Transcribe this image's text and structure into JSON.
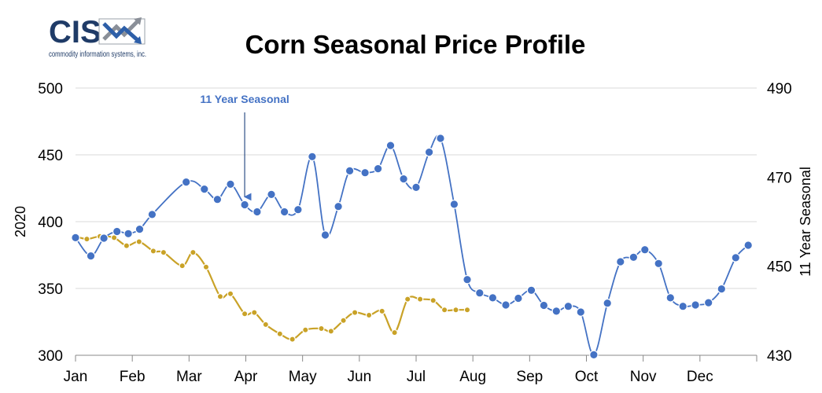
{
  "logo": {
    "brand": "CIS",
    "tagline": "commodity information systems, inc.",
    "colors": {
      "text": "#1f3b67",
      "arrow_gray": "#8a8f98",
      "arrow_blue": "#2e5fa8"
    }
  },
  "chart_data": {
    "type": "line",
    "title": "Corn Seasonal Price Profile",
    "ylabel_left": "2020",
    "ylabel_right": "11 Year Seasonal",
    "ylim_left": [
      300,
      500
    ],
    "yticks_left": [
      300,
      350,
      400,
      450,
      500
    ],
    "ylim_right": [
      430,
      490
    ],
    "yticks_right": [
      430,
      450,
      470,
      490
    ],
    "months": [
      "Jan",
      "Feb",
      "Mar",
      "Apr",
      "May",
      "Jun",
      "Jul",
      "Aug",
      "Sep",
      "Oct",
      "Nov",
      "Dec"
    ],
    "grid": true,
    "annotation": {
      "text": "11 Year Seasonal",
      "arrow_to_point": 11
    },
    "series": [
      {
        "name": "11 Year Seasonal",
        "axis": "right",
        "color": "#4472c4",
        "x": [
          0.0,
          0.27,
          0.5,
          0.73,
          0.93,
          1.13,
          1.35,
          1.95,
          2.27,
          2.5,
          2.73,
          2.98,
          3.2,
          3.45,
          3.68,
          3.92,
          4.17,
          4.4,
          4.63,
          4.83,
          5.1,
          5.33,
          5.55,
          5.78,
          6.0,
          6.23,
          6.43,
          6.67,
          6.9,
          7.12,
          7.35,
          7.58,
          7.8,
          8.03,
          8.25,
          8.47,
          8.68,
          8.9,
          9.13,
          9.37,
          9.6,
          9.83,
          10.03,
          10.27,
          10.48,
          10.7,
          10.92,
          11.15,
          11.38,
          11.63,
          11.85
        ],
        "values": [
          456.4,
          452.3,
          456.3,
          457.8,
          457.3,
          458.3,
          461.6,
          468.9,
          467.3,
          465.0,
          468.4,
          463.8,
          462.2,
          466.1,
          462.2,
          462.7,
          474.6,
          457.0,
          463.4,
          471.4,
          471.0,
          471.9,
          477.1,
          469.6,
          467.7,
          475.6,
          478.7,
          463.9,
          447.0,
          444.0,
          442.9,
          441.3,
          442.8,
          444.6,
          441.2,
          439.9,
          441.0,
          439.7,
          430.1,
          441.7,
          451.0,
          452.0,
          453.7,
          450.6,
          442.9,
          441.0,
          441.3,
          441.8,
          444.9,
          451.9,
          454.7
        ]
      },
      {
        "name": "2020",
        "axis": "left",
        "color": "#c9a227",
        "x": [
          0.0,
          0.2,
          0.43,
          0.68,
          0.9,
          1.12,
          1.37,
          1.55,
          1.88,
          2.07,
          2.3,
          2.55,
          2.73,
          2.98,
          3.15,
          3.35,
          3.6,
          3.82,
          4.05,
          4.33,
          4.5,
          4.72,
          4.92,
          5.17,
          5.4,
          5.62,
          5.85,
          6.07,
          6.3,
          6.5,
          6.7,
          6.9
        ],
        "values": [
          389,
          387,
          389,
          388,
          382,
          385,
          378,
          377,
          367,
          377,
          366,
          344,
          346,
          331,
          332,
          323,
          316,
          312,
          319,
          320,
          318,
          326,
          332,
          330,
          333,
          317,
          342,
          342,
          341,
          334,
          334,
          334
        ]
      }
    ]
  }
}
